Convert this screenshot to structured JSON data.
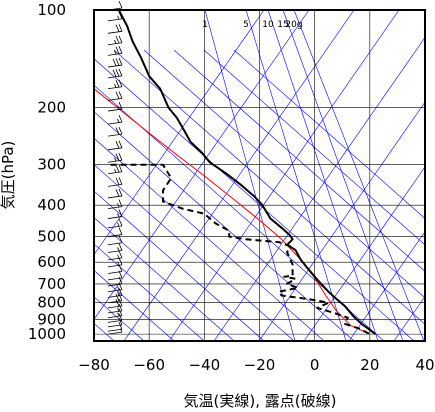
{
  "chart_data": {
    "type": "line",
    "title": "",
    "xlabel": "気温(実線), 露点(破線)",
    "ylabel": "気圧(hPa)",
    "x_unit": "°C",
    "y_unit": "hPa",
    "xlim": [
      -80,
      40
    ],
    "ylim": [
      1050,
      100
    ],
    "y_scale": "log",
    "grid": true,
    "x_ticks": [
      -80,
      -60,
      -40,
      -20,
      0,
      20,
      40
    ],
    "x_tick_labels": [
      "−80",
      "−60",
      "−40",
      "−20",
      "0",
      "20",
      "40"
    ],
    "y_ticks": [
      100,
      200,
      300,
      400,
      500,
      600,
      700,
      800,
      900,
      1000
    ],
    "y_tick_labels": [
      "100",
      "200",
      "300",
      "400",
      "500",
      "600",
      "700",
      "800",
      "900",
      "1000"
    ],
    "mixing_ratio_labels": [
      "1",
      "5",
      "10",
      "15",
      "20g"
    ],
    "colors": {
      "temperature": "#000000",
      "dewpoint": "#000000",
      "parcel": "#ff0000",
      "background_lines": "#0000ff",
      "grid": "#000000",
      "wind_barbs": "#000000"
    },
    "series": [
      {
        "key": "temperature",
        "style": "solid",
        "points": [
          [
            -71,
            100
          ],
          [
            -68,
            112
          ],
          [
            -66,
            125
          ],
          [
            -63,
            140
          ],
          [
            -60,
            160
          ],
          [
            -56,
            175
          ],
          [
            -53,
            200
          ],
          [
            -50,
            215
          ],
          [
            -48,
            230
          ],
          [
            -45,
            255
          ],
          [
            -41,
            275
          ],
          [
            -38,
            295
          ],
          [
            -32,
            320
          ],
          [
            -27,
            345
          ],
          [
            -22,
            375
          ],
          [
            -19,
            400
          ],
          [
            -16,
            440
          ],
          [
            -12,
            470
          ],
          [
            -9,
            495
          ],
          [
            -8,
            510
          ],
          [
            -10,
            530
          ],
          [
            -7,
            550
          ],
          [
            -5,
            590
          ],
          [
            -3,
            620
          ],
          [
            1,
            680
          ],
          [
            5,
            740
          ],
          [
            8,
            780
          ],
          [
            11,
            820
          ],
          [
            14,
            880
          ],
          [
            17,
            930
          ],
          [
            20,
            970
          ],
          [
            22,
            1000
          ]
        ]
      },
      {
        "key": "dewpoint",
        "style": "dashed",
        "points": [
          [
            -74,
            300
          ],
          [
            -55,
            300
          ],
          [
            -52,
            330
          ],
          [
            -55,
            360
          ],
          [
            -55,
            390
          ],
          [
            -48,
            410
          ],
          [
            -40,
            425
          ],
          [
            -36,
            455
          ],
          [
            -31,
            480
          ],
          [
            -31,
            500
          ],
          [
            -25,
            510
          ],
          [
            -13,
            520
          ],
          [
            -9,
            535
          ],
          [
            -10,
            560
          ],
          [
            -8,
            610
          ],
          [
            -8,
            660
          ],
          [
            -11,
            665
          ],
          [
            -7,
            675
          ],
          [
            -10,
            700
          ],
          [
            -6,
            720
          ],
          [
            -13,
            740
          ],
          [
            -12,
            760
          ],
          [
            -2,
            780
          ],
          [
            5,
            800
          ],
          [
            1,
            830
          ],
          [
            7,
            860
          ],
          [
            12,
            890
          ],
          [
            11,
            930
          ],
          [
            16,
            960
          ],
          [
            20,
            1000
          ]
        ]
      },
      {
        "key": "parcel",
        "style": "solid",
        "points": [
          [
            -80,
            175
          ],
          [
            -70,
            205
          ],
          [
            -60,
            240
          ],
          [
            -50,
            280
          ],
          [
            -40,
            325
          ],
          [
            -30,
            380
          ],
          [
            -20,
            445
          ],
          [
            -12,
            510
          ],
          [
            -5,
            590
          ],
          [
            0,
            670
          ],
          [
            4,
            760
          ],
          [
            8,
            850
          ],
          [
            13,
            940
          ],
          [
            20,
            1000
          ]
        ]
      }
    ],
    "wind_barbs": [
      {
        "p": 100,
        "speed": 10
      },
      {
        "p": 108,
        "speed": 15
      },
      {
        "p": 118,
        "speed": 20
      },
      {
        "p": 128,
        "speed": 25
      },
      {
        "p": 138,
        "speed": 25
      },
      {
        "p": 150,
        "speed": 30
      },
      {
        "p": 162,
        "speed": 30
      },
      {
        "p": 175,
        "speed": 25
      },
      {
        "p": 190,
        "speed": 20
      },
      {
        "p": 205,
        "speed": 15
      },
      {
        "p": 225,
        "speed": 15
      },
      {
        "p": 245,
        "speed": 20
      },
      {
        "p": 270,
        "speed": 20
      },
      {
        "p": 295,
        "speed": 25
      },
      {
        "p": 320,
        "speed": 25
      },
      {
        "p": 350,
        "speed": 20
      },
      {
        "p": 380,
        "speed": 20
      },
      {
        "p": 410,
        "speed": 15
      },
      {
        "p": 440,
        "speed": 15
      },
      {
        "p": 470,
        "speed": 15
      },
      {
        "p": 500,
        "speed": 10
      },
      {
        "p": 530,
        "speed": 10
      },
      {
        "p": 560,
        "speed": 15
      },
      {
        "p": 590,
        "speed": 15
      },
      {
        "p": 620,
        "speed": 15
      },
      {
        "p": 650,
        "speed": 10
      },
      {
        "p": 680,
        "speed": 10
      },
      {
        "p": 710,
        "speed": 10
      },
      {
        "p": 740,
        "speed": 15
      },
      {
        "p": 770,
        "speed": 15
      },
      {
        "p": 800,
        "speed": 20
      },
      {
        "p": 830,
        "speed": 20
      },
      {
        "p": 860,
        "speed": 15
      },
      {
        "p": 890,
        "speed": 15
      },
      {
        "p": 920,
        "speed": 10
      },
      {
        "p": 950,
        "speed": 10
      },
      {
        "p": 980,
        "speed": 10
      },
      {
        "p": 1000,
        "speed": 5
      }
    ]
  }
}
